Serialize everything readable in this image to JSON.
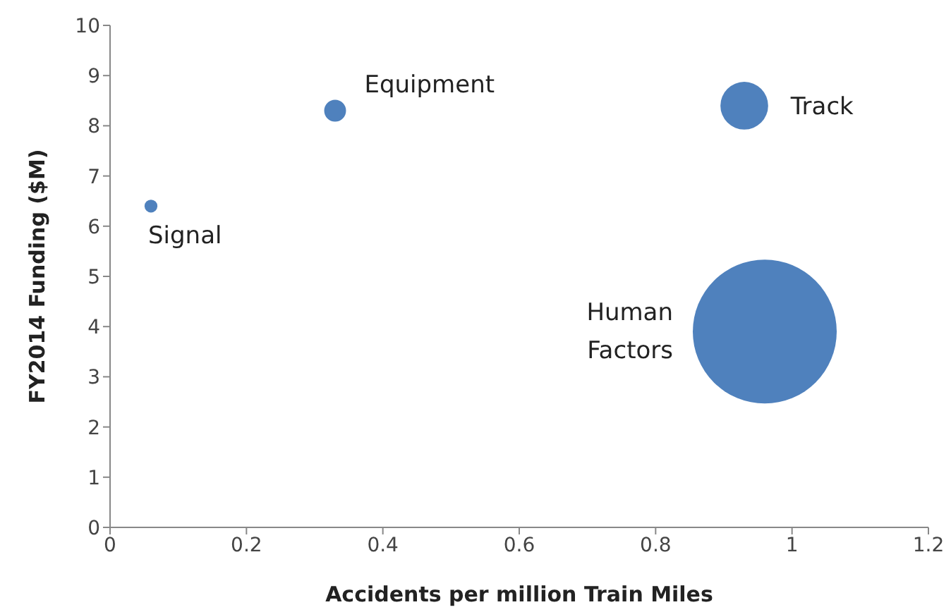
{
  "chart_data": {
    "type": "bubble",
    "xlabel": "Accidents per million Train Miles",
    "ylabel": "FY2014 Funding ($M)",
    "xlim": [
      0,
      1.2
    ],
    "xticks": [
      0,
      0.2,
      0.4,
      0.6,
      0.8,
      1,
      1.2
    ],
    "ylim": [
      0,
      10
    ],
    "yticks": [
      0,
      1,
      2,
      3,
      4,
      5,
      6,
      7,
      8,
      9,
      10
    ],
    "grid": false,
    "legend": false,
    "series": [
      {
        "name": "Signal",
        "color": "#4f81bd",
        "x": [
          0.06
        ],
        "values": [
          6.4
        ],
        "sizes": [
          0.008
        ]
      },
      {
        "name": "Equipment",
        "color": "#4f81bd",
        "x": [
          0.33
        ],
        "values": [
          8.3
        ],
        "sizes": [
          0.023
        ]
      },
      {
        "name": "Track",
        "color": "#4f81bd",
        "x": [
          0.93
        ],
        "values": [
          8.4
        ],
        "sizes": [
          0.11
        ]
      },
      {
        "name": "Human Factors",
        "color": "#4f81bd",
        "x": [
          0.96
        ],
        "values": [
          3.9
        ],
        "sizes": [
          1
        ]
      }
    ]
  }
}
